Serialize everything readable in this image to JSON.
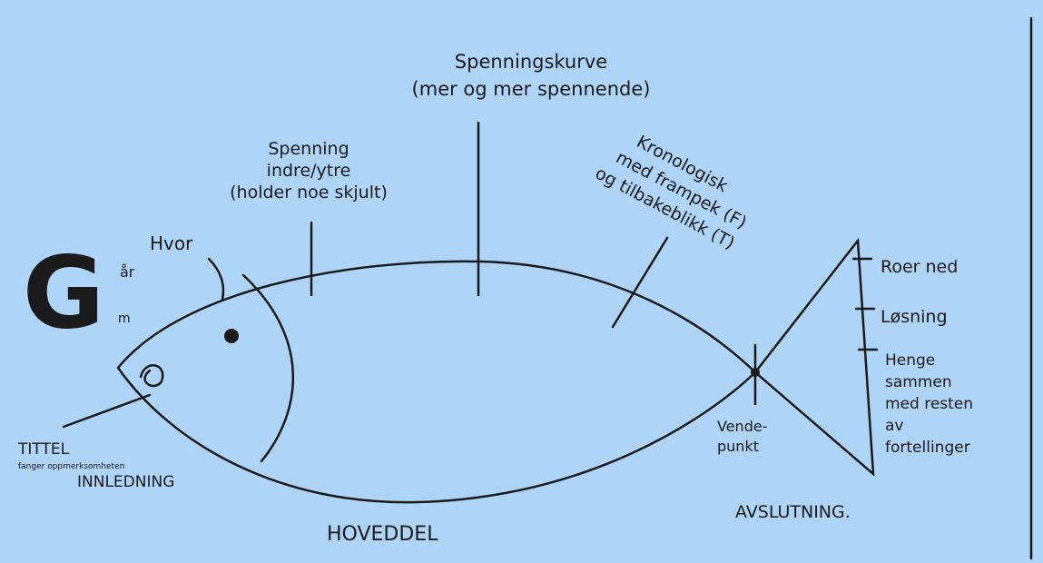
{
  "logo": "G",
  "curve": {
    "lines": [
      "Spenningskurve",
      "(mer og mer spennende)"
    ]
  },
  "labels": [
    {
      "lines": [
        "Spenning",
        "indre/ytre",
        "(holder noe skjult)"
      ]
    },
    {
      "lines": [
        "Kronologisk",
        "med frampek (F)",
        "og tilbakeblikk (T)"
      ]
    },
    {
      "lines": [
        "Hvor"
      ]
    },
    {
      "lines": [
        "år"
      ]
    },
    {
      "lines": [
        "m"
      ]
    },
    {
      "lines": [
        "TITTEL"
      ]
    },
    {
      "lines": [
        "fanger oppmerksomheten"
      ]
    },
    {
      "lines": [
        "INNLEDNING"
      ]
    },
    {
      "lines": [
        "HOVEDDEL"
      ]
    },
    {
      "lines": [
        "Vende-",
        "punkt"
      ]
    },
    {
      "lines": [
        "AVSLUTNING."
      ]
    },
    {
      "lines": [
        "Roer ned"
      ]
    },
    {
      "lines": [
        "Løsning"
      ]
    },
    {
      "lines": [
        "Henge",
        "sammen",
        "med resten",
        "av",
        "fortellinger"
      ]
    }
  ]
}
